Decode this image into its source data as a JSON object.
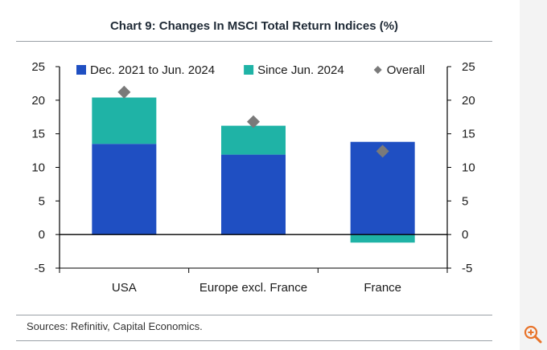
{
  "chart_data": {
    "type": "bar",
    "title": "Chart 9: Changes In MSCI Total Return Indices (%)",
    "categories": [
      "USA",
      "Europe excl. France",
      "France"
    ],
    "series": [
      {
        "name": "Dec. 2021 to Jun. 2024",
        "kind": "stacked-bar",
        "color": "#1f4fc2",
        "values": [
          13.5,
          11.9,
          13.8
        ]
      },
      {
        "name": "Since Jun. 2024",
        "kind": "stacked-bar",
        "color": "#1fb3a6",
        "values": [
          6.9,
          4.3,
          -1.2
        ]
      },
      {
        "name": "Overall",
        "kind": "marker",
        "color": "#7a7a7a",
        "values": [
          21.2,
          16.8,
          12.4
        ]
      }
    ],
    "ylim": [
      -5,
      25
    ],
    "yticks": [
      -5,
      0,
      5,
      10,
      15,
      20,
      25
    ],
    "xlabel": "",
    "ylabel": "",
    "legend": "top",
    "source": "Sources: Refinitiv, Capital Economics."
  },
  "icons": {
    "zoom": "zoom-in-icon"
  }
}
